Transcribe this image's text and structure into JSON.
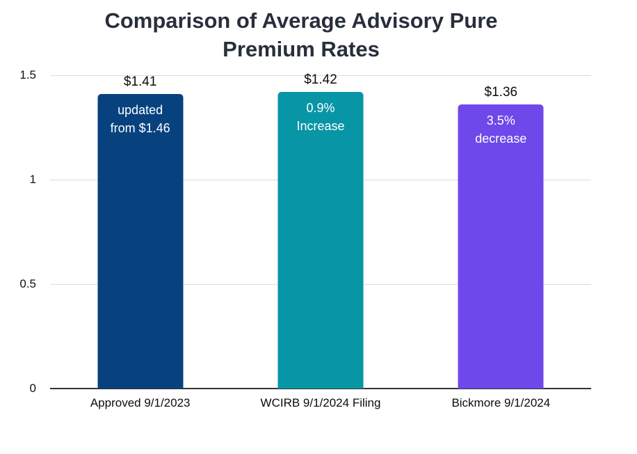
{
  "chart_data": {
    "type": "bar",
    "title": "Comparison of Average Advisory Pure Premium Rates",
    "title_lines": [
      "Comparison of Average Advisory Pure",
      "Premium Rates"
    ],
    "categories": [
      "Approved 9/1/2023",
      "WCIRB 9/1/2024 Filing",
      "Bickmore 9/1/2024"
    ],
    "values": [
      1.41,
      1.42,
      1.36
    ],
    "value_labels": [
      "$1.41",
      "$1.42",
      "$1.36"
    ],
    "bar_annotations": [
      [
        "updated",
        "from $1.46"
      ],
      [
        "0.9%",
        "Increase"
      ],
      [
        "3.5%",
        "decrease"
      ]
    ],
    "bar_colors": [
      "#07427f",
      "#0895a5",
      "#6e48ea"
    ],
    "annotation_text_color": "#ffffff",
    "ylim": [
      0,
      1.5
    ],
    "yticks": [
      {
        "label": "1.5",
        "value": 1.5
      },
      {
        "label": "1",
        "value": 1.0
      },
      {
        "label": "0.5",
        "value": 0.5
      },
      {
        "label": "0",
        "value": 0.0
      }
    ],
    "grid": true,
    "legend": false,
    "xlabel": "",
    "ylabel": ""
  },
  "colors": {
    "title_text": "#282e3b",
    "axis_line": "#333333",
    "gridline": "#dcdcdc",
    "tick_label": "#111111",
    "background": "#ffffff"
  }
}
